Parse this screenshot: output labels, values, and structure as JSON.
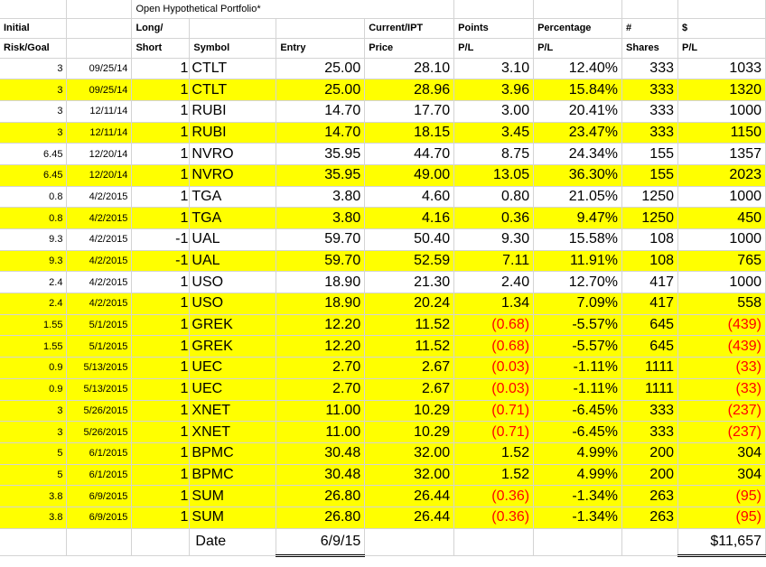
{
  "header": {
    "title": "Open Hypothetical Portfolio*",
    "row1": [
      "Initial",
      "",
      "Long/",
      "",
      "",
      "Current/IPT",
      "Points",
      "Percentage",
      "#",
      "$"
    ],
    "row2": [
      "Risk/Goal",
      "",
      "Short",
      "Symbol",
      "Entry",
      "Price",
      "P/L",
      "P/L",
      "Shares",
      "P/L"
    ]
  },
  "rows": [
    {
      "risk": "3",
      "date": "09/25/14",
      "ls": "1",
      "symbol": "CTLT",
      "entry": "25.00",
      "price": "28.10",
      "points": "3.10",
      "pct": "12.40%",
      "shares": "333",
      "pl": "1033",
      "yellow": false,
      "neg": false
    },
    {
      "risk": "3",
      "date": "09/25/14",
      "ls": "1",
      "symbol": "CTLT",
      "entry": "25.00",
      "price": "28.96",
      "points": "3.96",
      "pct": "15.84%",
      "shares": "333",
      "pl": "1320",
      "yellow": true,
      "neg": false
    },
    {
      "risk": "3",
      "date": "12/11/14",
      "ls": "1",
      "symbol": "RUBI",
      "entry": "14.70",
      "price": "17.70",
      "points": "3.00",
      "pct": "20.41%",
      "shares": "333",
      "pl": "1000",
      "yellow": false,
      "neg": false
    },
    {
      "risk": "3",
      "date": "12/11/14",
      "ls": "1",
      "symbol": "RUBI",
      "entry": "14.70",
      "price": "18.15",
      "points": "3.45",
      "pct": "23.47%",
      "shares": "333",
      "pl": "1150",
      "yellow": true,
      "neg": false
    },
    {
      "risk": "6.45",
      "date": "12/20/14",
      "ls": "1",
      "symbol": "NVRO",
      "entry": "35.95",
      "price": "44.70",
      "points": "8.75",
      "pct": "24.34%",
      "shares": "155",
      "pl": "1357",
      "yellow": false,
      "neg": false
    },
    {
      "risk": "6.45",
      "date": "12/20/14",
      "ls": "1",
      "symbol": "NVRO",
      "entry": "35.95",
      "price": "49.00",
      "points": "13.05",
      "pct": "36.30%",
      "shares": "155",
      "pl": "2023",
      "yellow": true,
      "neg": false
    },
    {
      "risk": "0.8",
      "date": "4/2/2015",
      "ls": "1",
      "symbol": "TGA",
      "entry": "3.80",
      "price": "4.60",
      "points": "0.80",
      "pct": "21.05%",
      "shares": "1250",
      "pl": "1000",
      "yellow": false,
      "neg": false
    },
    {
      "risk": "0.8",
      "date": "4/2/2015",
      "ls": "1",
      "symbol": "TGA",
      "entry": "3.80",
      "price": "4.16",
      "points": "0.36",
      "pct": "9.47%",
      "shares": "1250",
      "pl": "450",
      "yellow": true,
      "neg": false
    },
    {
      "risk": "9.3",
      "date": "4/2/2015",
      "ls": "-1",
      "symbol": "UAL",
      "entry": "59.70",
      "price": "50.40",
      "points": "9.30",
      "pct": "15.58%",
      "shares": "108",
      "pl": "1000",
      "yellow": false,
      "neg": false
    },
    {
      "risk": "9.3",
      "date": "4/2/2015",
      "ls": "-1",
      "symbol": "UAL",
      "entry": "59.70",
      "price": "52.59",
      "points": "7.11",
      "pct": "11.91%",
      "shares": "108",
      "pl": "765",
      "yellow": true,
      "neg": false
    },
    {
      "risk": "2.4",
      "date": "4/2/2015",
      "ls": "1",
      "symbol": "USO",
      "entry": "18.90",
      "price": "21.30",
      "points": "2.40",
      "pct": "12.70%",
      "shares": "417",
      "pl": "1000",
      "yellow": false,
      "neg": false
    },
    {
      "risk": "2.4",
      "date": "4/2/2015",
      "ls": "1",
      "symbol": "USO",
      "entry": "18.90",
      "price": "20.24",
      "points": "1.34",
      "pct": "7.09%",
      "shares": "417",
      "pl": "558",
      "yellow": true,
      "neg": false
    },
    {
      "risk": "1.55",
      "date": "5/1/2015",
      "ls": "1",
      "symbol": "GREK",
      "entry": "12.20",
      "price": "11.52",
      "points": "(0.68)",
      "pct": "-5.57%",
      "shares": "645",
      "pl": "(439)",
      "yellow": true,
      "neg": true
    },
    {
      "risk": "1.55",
      "date": "5/1/2015",
      "ls": "1",
      "symbol": "GREK",
      "entry": "12.20",
      "price": "11.52",
      "points": "(0.68)",
      "pct": "-5.57%",
      "shares": "645",
      "pl": "(439)",
      "yellow": true,
      "neg": true
    },
    {
      "risk": "0.9",
      "date": "5/13/2015",
      "ls": "1",
      "symbol": "UEC",
      "entry": "2.70",
      "price": "2.67",
      "points": "(0.03)",
      "pct": "-1.11%",
      "shares": "1111",
      "pl": "(33)",
      "yellow": true,
      "neg": true
    },
    {
      "risk": "0.9",
      "date": "5/13/2015",
      "ls": "1",
      "symbol": "UEC",
      "entry": "2.70",
      "price": "2.67",
      "points": "(0.03)",
      "pct": "-1.11%",
      "shares": "1111",
      "pl": "(33)",
      "yellow": true,
      "neg": true
    },
    {
      "risk": "3",
      "date": "5/26/2015",
      "ls": "1",
      "symbol": "XNET",
      "entry": "11.00",
      "price": "10.29",
      "points": "(0.71)",
      "pct": "-6.45%",
      "shares": "333",
      "pl": "(237)",
      "yellow": true,
      "neg": true
    },
    {
      "risk": "3",
      "date": "5/26/2015",
      "ls": "1",
      "symbol": "XNET",
      "entry": "11.00",
      "price": "10.29",
      "points": "(0.71)",
      "pct": "-6.45%",
      "shares": "333",
      "pl": "(237)",
      "yellow": true,
      "neg": true
    },
    {
      "risk": "5",
      "date": "6/1/2015",
      "ls": "1",
      "symbol": "BPMC",
      "entry": "30.48",
      "price": "32.00",
      "points": "1.52",
      "pct": "4.99%",
      "shares": "200",
      "pl": "304",
      "yellow": true,
      "neg": false
    },
    {
      "risk": "5",
      "date": "6/1/2015",
      "ls": "1",
      "symbol": "BPMC",
      "entry": "30.48",
      "price": "32.00",
      "points": "1.52",
      "pct": "4.99%",
      "shares": "200",
      "pl": "304",
      "yellow": true,
      "neg": false
    },
    {
      "risk": "3.8",
      "date": "6/9/2015",
      "ls": "1",
      "symbol": "SUM",
      "entry": "26.80",
      "price": "26.44",
      "points": "(0.36)",
      "pct": "-1.34%",
      "shares": "263",
      "pl": "(95)",
      "yellow": true,
      "neg": true
    },
    {
      "risk": "3.8",
      "date": "6/9/2015",
      "ls": "1",
      "symbol": "SUM",
      "entry": "26.80",
      "price": "26.44",
      "points": "(0.36)",
      "pct": "-1.34%",
      "shares": "263",
      "pl": "(95)",
      "yellow": true,
      "neg": true
    }
  ],
  "footer": {
    "date_label": "Date",
    "date_value": "6/9/15",
    "total": "$11,657"
  },
  "colors": {
    "highlight": "#ffff00",
    "negative": "#ff0000",
    "gridline": "#d4d4d4"
  }
}
